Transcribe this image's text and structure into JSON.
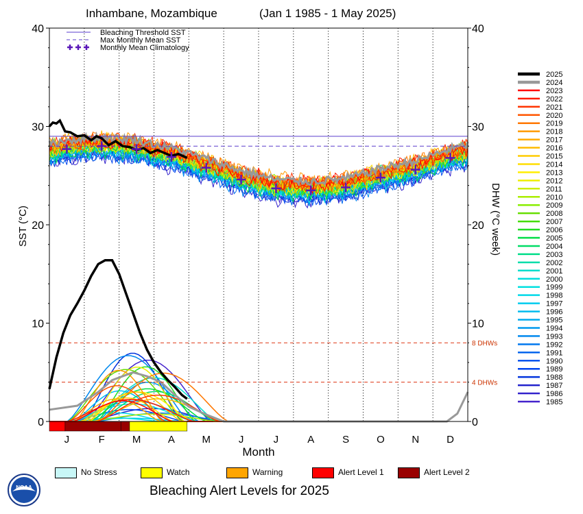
{
  "header": {
    "location": "Inhambane, Mozambique",
    "date_range": "(Jan 1 1985 - 1 May 2025)"
  },
  "footer": {
    "title": "Bleaching Alert Levels for 2025"
  },
  "legend_stress": [
    {
      "label": "No Stress",
      "color": "#c8f7f7"
    },
    {
      "label": "Watch",
      "color": "#ffff00"
    },
    {
      "label": "Warning",
      "color": "#ffa500"
    },
    {
      "label": "Alert Level 1",
      "color": "#ff0000"
    },
    {
      "label": "Alert Level 2",
      "color": "#990000"
    }
  ],
  "chart_data": {
    "type": "line",
    "xlabel": "Month",
    "ylabel_left": "SST (°C)",
    "ylabel_right": "DHW (°C week)",
    "ylim": [
      0,
      40
    ],
    "x_ticks": [
      "J",
      "F",
      "M",
      "A",
      "M",
      "J",
      "J",
      "A",
      "S",
      "O",
      "N",
      "D"
    ],
    "y_ticks": [
      0,
      10,
      20,
      30,
      40
    ],
    "plot_legend": [
      {
        "label": "Bleaching Threshold SST",
        "style": "solid",
        "color": "#5a3ccc"
      },
      {
        "label": "Max Monthly Mean SST",
        "style": "dashed",
        "color": "#5a3ccc"
      },
      {
        "label": "Monthly Mean Climatology",
        "style": "plus",
        "color": "#5a18b8"
      }
    ],
    "bleaching_threshold_sst": 29.0,
    "max_monthly_mean_sst": 28.0,
    "dhw_reference_lines": [
      {
        "value": 8,
        "label": "8 DHWs"
      },
      {
        "value": 4,
        "label": "4 DHWs"
      }
    ],
    "monthly_mean_climatology": [
      27.7,
      28.0,
      27.7,
      26.9,
      25.8,
      24.6,
      23.7,
      23.5,
      23.8,
      24.8,
      25.6,
      26.8
    ],
    "sst_2025": [
      [
        0,
        30.0
      ],
      [
        0.1,
        30.4
      ],
      [
        0.2,
        30.3
      ],
      [
        0.3,
        30.6
      ],
      [
        0.45,
        29.5
      ],
      [
        0.6,
        29.4
      ],
      [
        0.8,
        29.0
      ],
      [
        1.0,
        29.1
      ],
      [
        1.2,
        28.6
      ],
      [
        1.35,
        29.0
      ],
      [
        1.5,
        28.8
      ],
      [
        1.7,
        28.1
      ],
      [
        1.9,
        28.5
      ],
      [
        2.1,
        28.0
      ],
      [
        2.3,
        27.9
      ],
      [
        2.5,
        27.6
      ],
      [
        2.7,
        27.8
      ],
      [
        2.9,
        27.3
      ],
      [
        3.1,
        27.6
      ],
      [
        3.3,
        27.3
      ],
      [
        3.5,
        27.0
      ],
      [
        3.7,
        27.2
      ],
      [
        3.95,
        26.8
      ]
    ],
    "dhw_2025": [
      [
        0,
        3.3
      ],
      [
        0.2,
        6.5
      ],
      [
        0.4,
        9.0
      ],
      [
        0.6,
        10.8
      ],
      [
        0.8,
        12.0
      ],
      [
        1.0,
        13.3
      ],
      [
        1.2,
        14.8
      ],
      [
        1.4,
        16.0
      ],
      [
        1.6,
        16.4
      ],
      [
        1.8,
        16.4
      ],
      [
        2.0,
        15.0
      ],
      [
        2.2,
        13.0
      ],
      [
        2.4,
        11.0
      ],
      [
        2.6,
        9.0
      ],
      [
        2.8,
        7.3
      ],
      [
        3.0,
        6.0
      ],
      [
        3.2,
        5.0
      ],
      [
        3.4,
        4.2
      ],
      [
        3.6,
        3.5
      ],
      [
        3.8,
        2.7
      ],
      [
        3.95,
        2.3
      ]
    ],
    "dhw_2024": [
      [
        0,
        1.2
      ],
      [
        0.8,
        1.6
      ],
      [
        1.4,
        3.0
      ],
      [
        1.8,
        4.2
      ],
      [
        2.4,
        5.0
      ],
      [
        2.8,
        4.6
      ],
      [
        3.2,
        4.0
      ],
      [
        3.6,
        2.7
      ],
      [
        4.0,
        1.5
      ],
      [
        4.5,
        0.7
      ],
      [
        5.0,
        0
      ],
      [
        11.4,
        0
      ],
      [
        11.7,
        0.8
      ],
      [
        12.0,
        3.0
      ]
    ],
    "alert_bar_2025": [
      {
        "from": 0.0,
        "to": 0.45,
        "level": "Alert Level 1"
      },
      {
        "from": 0.45,
        "to": 2.05,
        "level": "Alert Level 2"
      },
      {
        "from": 2.05,
        "to": 2.3,
        "level": "Alert Level 2"
      },
      {
        "from": 2.3,
        "to": 3.95,
        "level": "Watch"
      }
    ],
    "series_colors": [
      {
        "year": "2025",
        "color": "#000000"
      },
      {
        "year": "2024",
        "color": "#999999"
      },
      {
        "year": "2023",
        "color": "#ff0000"
      },
      {
        "year": "2022",
        "color": "#ff1a00"
      },
      {
        "year": "2021",
        "color": "#ff3300"
      },
      {
        "year": "2020",
        "color": "#ff5500"
      },
      {
        "year": "2019",
        "color": "#ff7700"
      },
      {
        "year": "2018",
        "color": "#ff9900"
      },
      {
        "year": "2017",
        "color": "#ffaa00"
      },
      {
        "year": "2016",
        "color": "#ffbb00"
      },
      {
        "year": "2015",
        "color": "#ffcc00"
      },
      {
        "year": "2014",
        "color": "#ffdd00"
      },
      {
        "year": "2013",
        "color": "#ffee00"
      },
      {
        "year": "2012",
        "color": "#eeee00"
      },
      {
        "year": "2011",
        "color": "#ccee00"
      },
      {
        "year": "2010",
        "color": "#aaee00"
      },
      {
        "year": "2009",
        "color": "#88ee00"
      },
      {
        "year": "2008",
        "color": "#66dd00"
      },
      {
        "year": "2007",
        "color": "#44dd00"
      },
      {
        "year": "2006",
        "color": "#22dd22"
      },
      {
        "year": "2005",
        "color": "#00dd44"
      },
      {
        "year": "2004",
        "color": "#00dd66"
      },
      {
        "year": "2003",
        "color": "#00dd88"
      },
      {
        "year": "2002",
        "color": "#00ddaa"
      },
      {
        "year": "2001",
        "color": "#00ddcc"
      },
      {
        "year": "2000",
        "color": "#00dddd"
      },
      {
        "year": "1999",
        "color": "#00e0e0"
      },
      {
        "year": "1998",
        "color": "#00d8e8"
      },
      {
        "year": "1997",
        "color": "#00ccee"
      },
      {
        "year": "1996",
        "color": "#00bbee"
      },
      {
        "year": "1995",
        "color": "#00aaee"
      },
      {
        "year": "1994",
        "color": "#0099ee"
      },
      {
        "year": "1993",
        "color": "#0088ee"
      },
      {
        "year": "1992",
        "color": "#0077ee"
      },
      {
        "year": "1991",
        "color": "#0066ee"
      },
      {
        "year": "1990",
        "color": "#0055ee"
      },
      {
        "year": "1989",
        "color": "#0044ee"
      },
      {
        "year": "1988",
        "color": "#0033dd"
      },
      {
        "year": "1987",
        "color": "#2222cc"
      },
      {
        "year": "1986",
        "color": "#3322cc"
      },
      {
        "year": "1985",
        "color": "#4422cc"
      }
    ]
  }
}
